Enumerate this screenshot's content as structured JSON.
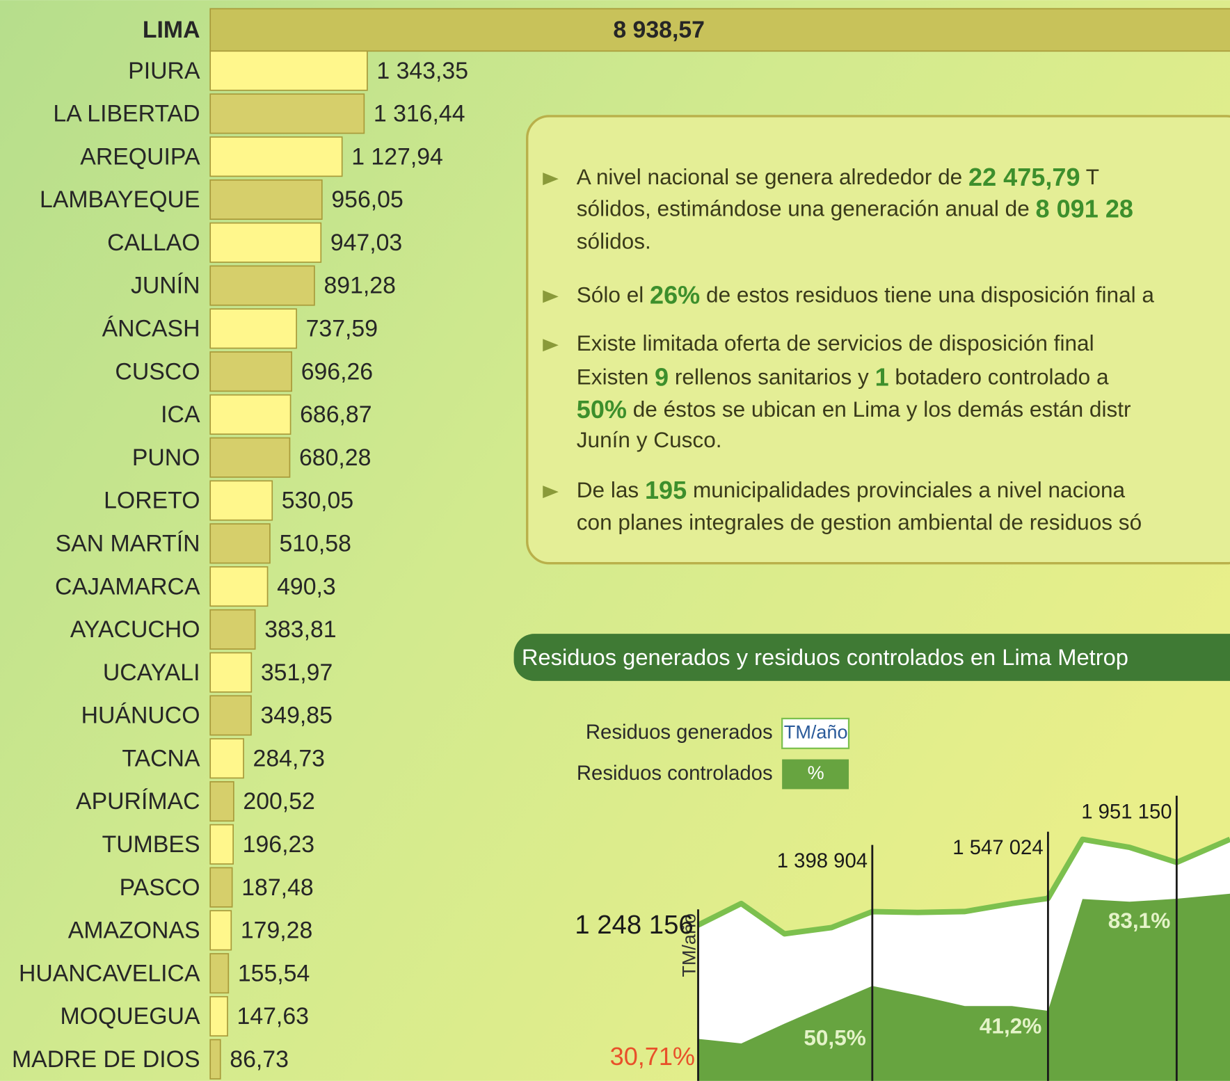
{
  "chart_data": [
    {
      "type": "bar",
      "orientation": "horizontal",
      "categories": [
        "LIMA",
        "PIURA",
        "LA LIBERTAD",
        "AREQUIPA",
        "LAMBAYEQUE",
        "CALLAO",
        "JUNÍN",
        "ÁNCASH",
        "CUSCO",
        "ICA",
        "PUNO",
        "LORETO",
        "SAN MARTÍN",
        "CAJAMARCA",
        "AYACUCHO",
        "UCAYALI",
        "HUÁNUCO",
        "TACNA",
        "APURÍMAC",
        "TUMBES",
        "PASCO",
        "AMAZONAS",
        "HUANCAVELICA",
        "MOQUEGUA",
        "MADRE DE DIOS"
      ],
      "values": [
        8938.57,
        1343.35,
        1316.44,
        1127.94,
        956.05,
        947.03,
        891.28,
        737.59,
        696.26,
        686.87,
        680.28,
        530.05,
        510.58,
        490.3,
        383.81,
        351.97,
        349.85,
        284.73,
        200.52,
        196.23,
        187.48,
        179.28,
        155.54,
        147.63,
        86.73
      ],
      "value_labels": [
        "8 938,57",
        "1 343,35",
        "1 316,44",
        "1 127,94",
        "956,05",
        "947,03",
        "891,28",
        "737,59",
        "696,26",
        "686,87",
        "680,28",
        "530,05",
        "510,58",
        "490,3",
        "383,81",
        "351,97",
        "349,85",
        "284,73",
        "200,52",
        "196,23",
        "187,48",
        "179,28",
        "155,54",
        "147,63",
        "86,73"
      ],
      "colors": [
        "#c8c25a",
        "#fff78c",
        "#d6cf6b",
        "#fff78c",
        "#d6cf6b",
        "#fff78c",
        "#d6cf6b",
        "#fff78c",
        "#d6cf6b",
        "#fff78c",
        "#d6cf6b",
        "#fff78c",
        "#d6cf6b",
        "#fff78c",
        "#d6cf6b",
        "#fff78c",
        "#d6cf6b",
        "#fff78c",
        "#d6cf6b",
        "#fff78c",
        "#d6cf6b",
        "#fff78c",
        "#d6cf6b",
        "#fff78c",
        "#d6cf6b"
      ]
    },
    {
      "type": "area",
      "title": "Residuos generados y residuos controlados en Lima Metrop",
      "y_label": "TM/año",
      "categories": [
        null,
        null,
        null,
        null,
        null,
        null,
        null,
        null,
        null,
        null,
        null,
        null,
        null
      ],
      "ylim": [
        -500000,
        2500000
      ],
      "y2lim": [
        15,
        115
      ],
      "series": [
        {
          "name": "Residuos generados",
          "unit": "TM/año",
          "color": "#7cc04e",
          "values": [
            1248156,
            1490000,
            1150000,
            1220000,
            1398904,
            1390000,
            1400000,
            1490000,
            1547024,
            2210000,
            2120000,
            1951150,
            2210000
          ],
          "value_labels": [
            "1 248 156",
            null,
            null,
            null,
            "1 398 904",
            null,
            null,
            null,
            "1 547 024",
            null,
            null,
            "1 951 150",
            null
          ]
        },
        {
          "name": "Residuos controlados",
          "unit": "%",
          "color": "#67a440",
          "axis": "y2",
          "values": [
            30.71,
            29,
            36.4,
            44,
            50.5,
            47,
            43,
            43,
            41.2,
            83,
            82,
            83.1,
            85
          ],
          "value_labels": [
            "30,71%",
            null,
            null,
            null,
            "50,5%",
            null,
            null,
            null,
            "41,2%",
            null,
            null,
            "83,1%",
            null
          ]
        }
      ]
    }
  ],
  "info_box": {
    "bullets": [
      [
        [
          "A nivel nacional se genera alrededor de ",
          "22 475,79",
          " T"
        ],
        [
          "sólidos, estimándose una generación anual de ",
          "8 091 28"
        ],
        [
          "sólidos."
        ]
      ],
      [
        [
          "Sólo el ",
          "26%",
          " de estos residuos tiene una disposición final a"
        ]
      ],
      [
        [
          "Existe limitada oferta de servicios de disposición final"
        ],
        [
          "Existen ",
          "9",
          " rellenos sanitarios y ",
          "1",
          " botadero controlado a"
        ],
        [
          "",
          "50%",
          " de éstos se ubican en Lima y los demás están distr"
        ],
        [
          "Junín y Cusco."
        ]
      ],
      [
        [
          "De las ",
          "195",
          " municipalidades provinciales a nivel naciona"
        ],
        [
          "con planes integrales de gestion ambiental de residuos só"
        ]
      ]
    ]
  }
}
